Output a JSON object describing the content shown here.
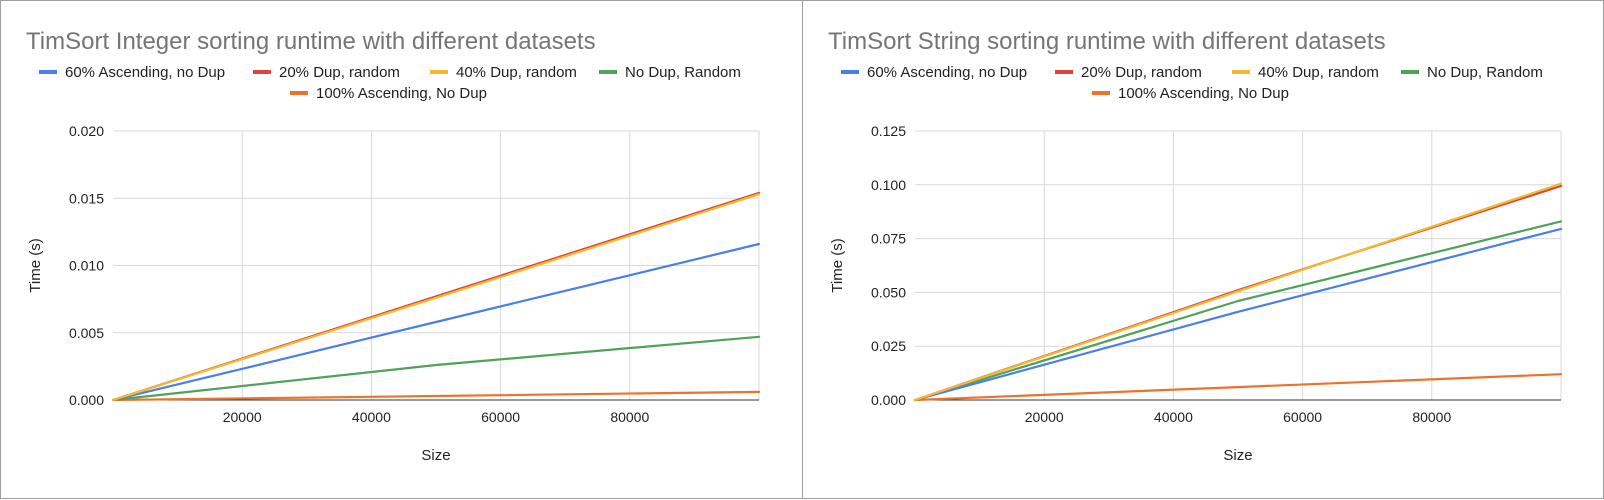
{
  "colors": {
    "blue": "#4a7fe8",
    "red": "#db4437",
    "yellow": "#f4b92e",
    "green": "#4fa359",
    "orange": "#ee7227"
  },
  "chart_data": [
    {
      "type": "line",
      "title": "TimSort Integer sorting runtime with different datasets",
      "xlabel": "Size",
      "ylabel": "Time (s)",
      "xlim": [
        0,
        100000
      ],
      "ylim": [
        0,
        0.02
      ],
      "x_ticks": [
        "20000",
        "40000",
        "60000",
        "80000"
      ],
      "y_ticks": [
        "0.000",
        "0.005",
        "0.010",
        "0.015",
        "0.020"
      ],
      "grid": true,
      "legend_position": "top",
      "x": [
        0,
        50000,
        100000
      ],
      "series": [
        {
          "name": "60% Ascending, no Dup",
          "color": "#4a7fe8",
          "values": [
            0,
            0.0058,
            0.0116
          ]
        },
        {
          "name": "20% Dup, random",
          "color": "#db4437",
          "values": [
            0,
            0.0077,
            0.0154
          ]
        },
        {
          "name": "40% Dup, random",
          "color": "#f4b92e",
          "values": [
            0,
            0.0076,
            0.0153
          ]
        },
        {
          "name": "No Dup, Random",
          "color": "#4fa359",
          "values": [
            0,
            0.0026,
            0.0047
          ]
        },
        {
          "name": "100% Ascending, No Dup",
          "color": "#ee7227",
          "values": [
            0,
            0.0003,
            0.0006
          ]
        }
      ]
    },
    {
      "type": "line",
      "title": "TimSort String sorting runtime with different datasets",
      "xlabel": "Size",
      "ylabel": "Time (s)",
      "xlim": [
        0,
        100000
      ],
      "ylim": [
        0,
        0.125
      ],
      "x_ticks": [
        "20000",
        "40000",
        "60000",
        "80000"
      ],
      "y_ticks": [
        "0.000",
        "0.025",
        "0.050",
        "0.075",
        "0.100",
        "0.125"
      ],
      "grid": true,
      "legend_position": "top",
      "x": [
        0,
        50000,
        100000
      ],
      "series": [
        {
          "name": "60% Ascending, no Dup",
          "color": "#4a7fe8",
          "values": [
            0,
            0.041,
            0.0795
          ]
        },
        {
          "name": "20% Dup, random",
          "color": "#db4437",
          "values": [
            0,
            0.051,
            0.0995
          ]
        },
        {
          "name": "40% Dup, random",
          "color": "#f4b92e",
          "values": [
            0,
            0.0505,
            0.1005
          ]
        },
        {
          "name": "No Dup, Random",
          "color": "#4fa359",
          "values": [
            0,
            0.046,
            0.083
          ]
        },
        {
          "name": "100% Ascending, No Dup",
          "color": "#ee7227",
          "values": [
            0,
            0.006,
            0.012
          ]
        }
      ]
    }
  ]
}
